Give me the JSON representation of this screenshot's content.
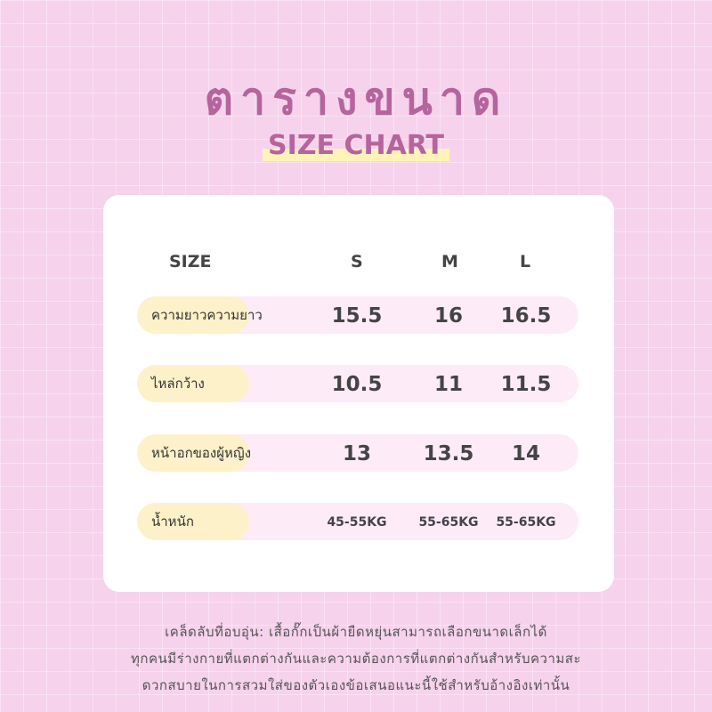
{
  "title": "ตารางขนาด",
  "subtitle": "SIZE CHART",
  "table": {
    "headers": [
      "SIZE",
      "S",
      "M",
      "L"
    ],
    "rows": [
      {
        "label": "ความยาวความยาว",
        "values": [
          "15.5",
          "16",
          "16.5"
        ]
      },
      {
        "label": "ไหล่กว้าง",
        "values": [
          "10.5",
          "11",
          "11.5"
        ]
      },
      {
        "label": "หน้าอกของผู้หญิง",
        "values": [
          "13",
          "13.5",
          "14"
        ]
      },
      {
        "label": "น้ำหนัก",
        "values": [
          "45-55KG",
          "55-65KG",
          "55-65KG"
        ]
      }
    ]
  },
  "note": [
    "เคล็ดลับที่อบอุ่น: เสื้อกั๊กเป็นผ้ายืดหยุ่นสามารถเลือกขนาดเล็กได้",
    "ทุกคนมีร่างกายที่แตกต่างกันและความต้องการที่แตกต่างกันสำหรับความสะ",
    "ดวกสบายในการสวมใส่ของตัวเองข้อเสนอแนะนี้ใช้สำหรับอ้างอิงเท่านั้น"
  ]
}
